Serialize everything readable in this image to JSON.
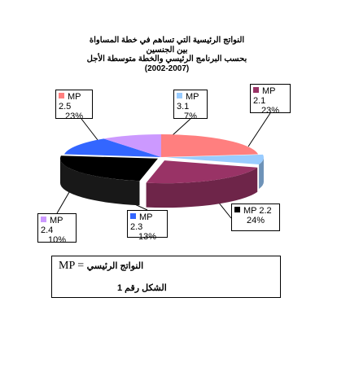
{
  "chart_data": {
    "type": "pie",
    "title_lines": [
      "النواتج الرئيسية التي تساهم في خطة المساواة",
      "بين الجنسين",
      "بحسب البرنامج الرئيسي والخطة متوسطة الأجل",
      "(2002-2007)"
    ],
    "slices": [
      {
        "label": "MP 2.5",
        "value": 23,
        "value_text": "23%",
        "color": "#ff7f7f"
      },
      {
        "label": "MP 3.1",
        "value": 7,
        "value_text": "7%",
        "color": "#99ccff"
      },
      {
        "label": "MP 2.1",
        "value": 23,
        "value_text": "23%",
        "color": "#993366"
      },
      {
        "label": "MP 2.2",
        "value": 24,
        "value_text": "24%",
        "color": "#000000"
      },
      {
        "label": "MP 2.3",
        "value": 13,
        "value_text": "13%",
        "color": "#3366ff"
      },
      {
        "label": "MP 2.4",
        "value": 10,
        "value_text": "10%",
        "color": "#cc99ff"
      }
    ]
  },
  "legend_box": {
    "abbrev": "MP",
    "equals": "=",
    "meaning": "النواتج الرئيسي",
    "figure_caption": "الشكل رقم 1"
  }
}
